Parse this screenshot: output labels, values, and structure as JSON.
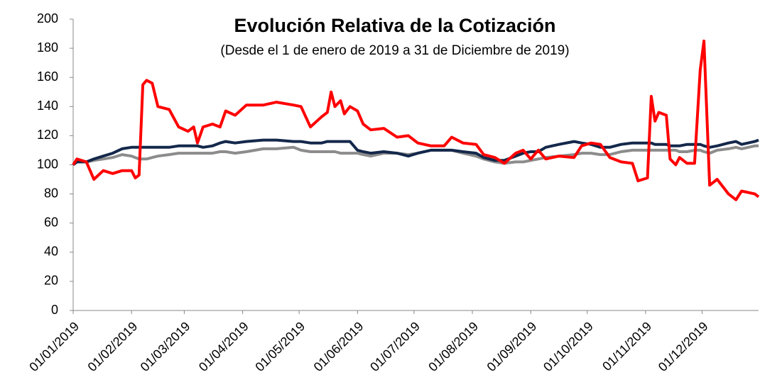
{
  "chart_data": {
    "type": "line",
    "title": "Evolución Relativa de la Cotización",
    "subtitle": "(Desde el 1 de enero de 2019 a 31 de Diciembre de 2019)",
    "x": [
      "2019-01-01",
      "2019-01-03",
      "2019-01-08",
      "2019-01-12",
      "2019-01-17",
      "2019-01-22",
      "2019-01-27",
      "2019-02-01",
      "2019-02-03",
      "2019-02-05",
      "2019-02-07",
      "2019-02-09",
      "2019-02-12",
      "2019-02-15",
      "2019-02-21",
      "2019-02-26",
      "2019-03-03",
      "2019-03-06",
      "2019-03-08",
      "2019-03-11",
      "2019-03-16",
      "2019-03-20",
      "2019-03-23",
      "2019-03-28",
      "2019-04-03",
      "2019-04-12",
      "2019-04-19",
      "2019-04-28",
      "2019-05-02",
      "2019-05-07",
      "2019-05-13",
      "2019-05-16",
      "2019-05-18",
      "2019-05-20",
      "2019-05-23",
      "2019-05-25",
      "2019-05-28",
      "2019-06-01",
      "2019-06-04",
      "2019-06-08",
      "2019-06-15",
      "2019-06-22",
      "2019-06-28",
      "2019-07-03",
      "2019-07-10",
      "2019-07-17",
      "2019-07-21",
      "2019-07-27",
      "2019-08-03",
      "2019-08-07",
      "2019-08-13",
      "2019-08-18",
      "2019-08-24",
      "2019-08-28",
      "2019-09-01",
      "2019-09-05",
      "2019-09-09",
      "2019-09-16",
      "2019-09-24",
      "2019-09-28",
      "2019-10-03",
      "2019-10-08",
      "2019-10-13",
      "2019-10-19",
      "2019-10-25",
      "2019-10-28",
      "2019-11-02",
      "2019-11-04",
      "2019-11-06",
      "2019-11-08",
      "2019-11-12",
      "2019-11-14",
      "2019-11-17",
      "2019-11-19",
      "2019-11-23",
      "2019-11-27",
      "2019-11-30",
      "2019-12-02",
      "2019-12-05",
      "2019-12-09",
      "2019-12-15",
      "2019-12-19",
      "2019-12-22",
      "2019-12-29",
      "2019-12-31"
    ],
    "series": [
      {
        "color": "#8c8c8c",
        "values": [
          101,
          102,
          102,
          103,
          104,
          105,
          107,
          106,
          105,
          104,
          104,
          104,
          105,
          106,
          107,
          108,
          108,
          108,
          108,
          108,
          108,
          109,
          109,
          108,
          109,
          111,
          111,
          112,
          110,
          109,
          109,
          109,
          109,
          109,
          108,
          108,
          108,
          108,
          107,
          106,
          108,
          108,
          107,
          108,
          110,
          110,
          110,
          108,
          106,
          104,
          102,
          101,
          102,
          102,
          103,
          104,
          105,
          106,
          107,
          108,
          108,
          107,
          107,
          109,
          110,
          110,
          110,
          110,
          110,
          110,
          110,
          110,
          110,
          109,
          109,
          110,
          110,
          109,
          108,
          110,
          111,
          112,
          111,
          113,
          113
        ]
      },
      {
        "color": "#14284b",
        "values": [
          100,
          102,
          102,
          104,
          106,
          108,
          111,
          112,
          112,
          112,
          112,
          112,
          112,
          112,
          112,
          113,
          113,
          113,
          113,
          112,
          113,
          115,
          116,
          115,
          116,
          117,
          117,
          116,
          116,
          115,
          115,
          116,
          116,
          116,
          116,
          116,
          116,
          110,
          109,
          108,
          109,
          108,
          106,
          108,
          110,
          110,
          110,
          109,
          108,
          105,
          103,
          103,
          106,
          108,
          109,
          109,
          112,
          114,
          116,
          115,
          114,
          112,
          112,
          114,
          115,
          115,
          115,
          115,
          114,
          114,
          114,
          113,
          113,
          113,
          114,
          114,
          114,
          113,
          112,
          113,
          115,
          116,
          114,
          116,
          117
        ]
      },
      {
        "color": "#ff0000",
        "values": [
          100,
          104,
          102,
          90,
          96,
          94,
          96,
          96,
          91,
          93,
          155,
          158,
          156,
          140,
          138,
          126,
          123,
          126,
          115,
          126,
          128,
          126,
          137,
          134,
          141,
          141,
          143,
          141,
          140,
          126,
          133,
          136,
          150,
          140,
          144,
          135,
          140,
          137,
          128,
          124,
          125,
          119,
          120,
          115,
          113,
          113,
          119,
          115,
          114,
          107,
          105,
          101,
          108,
          110,
          104,
          110,
          104,
          106,
          105,
          113,
          115,
          114,
          105,
          102,
          101,
          89,
          91,
          147,
          130,
          136,
          134,
          104,
          100,
          105,
          101,
          101,
          165,
          185,
          86,
          90,
          80,
          76,
          82,
          80,
          78
        ]
      }
    ],
    "xlim": [
      "2019-01-01",
      "2019-12-31"
    ],
    "xticks": [
      {
        "value": "2019-01-01",
        "label": "01/01/2019"
      },
      {
        "value": "2019-02-01",
        "label": "01/02/2019"
      },
      {
        "value": "2019-03-01",
        "label": "01/03/2019"
      },
      {
        "value": "2019-04-01",
        "label": "01/04/2019"
      },
      {
        "value": "2019-05-01",
        "label": "01/05/2019"
      },
      {
        "value": "2019-06-01",
        "label": "01/06/2019"
      },
      {
        "value": "2019-07-01",
        "label": "01/07/2019"
      },
      {
        "value": "2019-08-01",
        "label": "01/08/2019"
      },
      {
        "value": "2019-09-01",
        "label": "01/09/2019"
      },
      {
        "value": "2019-10-01",
        "label": "01/10/2019"
      },
      {
        "value": "2019-11-01",
        "label": "01/11/2019"
      },
      {
        "value": "2019-12-01",
        "label": "01/12/2019"
      }
    ],
    "ylim": [
      0,
      200
    ],
    "yticks": [
      0,
      20,
      40,
      60,
      80,
      100,
      120,
      140,
      160,
      180,
      200
    ],
    "grid": false
  }
}
